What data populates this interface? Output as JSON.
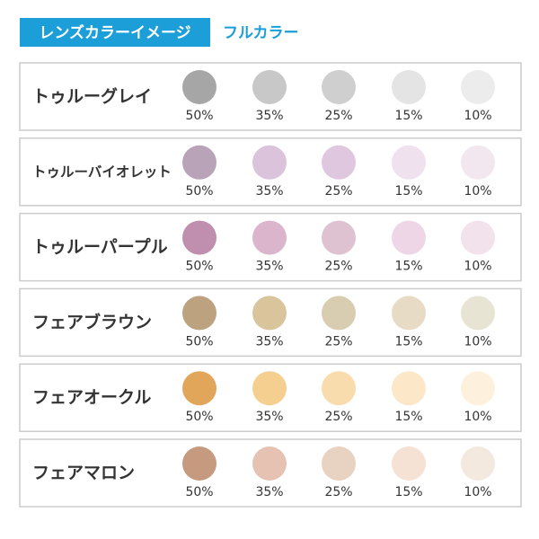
{
  "header": {
    "title": "レンズカラーイメージ",
    "subtitle": "フルカラー"
  },
  "rows": [
    {
      "name": "トゥルーグレイ",
      "swatches": [
        {
          "label": "50%",
          "color": "#a6a6a6"
        },
        {
          "label": "35%",
          "color": "#c8c8c8"
        },
        {
          "label": "25%",
          "color": "#cfcfcf"
        },
        {
          "label": "15%",
          "color": "#e4e4e4"
        },
        {
          "label": "10%",
          "color": "#ececec"
        }
      ]
    },
    {
      "name": "トゥルーバイオレット",
      "swatches": [
        {
          "label": "50%",
          "color": "#b8a3b8"
        },
        {
          "label": "35%",
          "color": "#dcc3dc"
        },
        {
          "label": "25%",
          "color": "#dfc8df"
        },
        {
          "label": "15%",
          "color": "#efe1ed"
        },
        {
          "label": "10%",
          "color": "#f3e7ef"
        }
      ]
    },
    {
      "name": "トゥルーパープル",
      "swatches": [
        {
          "label": "50%",
          "color": "#c08eaf"
        },
        {
          "label": "35%",
          "color": "#dbb5cc"
        },
        {
          "label": "25%",
          "color": "#dec2d2"
        },
        {
          "label": "15%",
          "color": "#efd6e6"
        },
        {
          "label": "10%",
          "color": "#f2e2ec"
        }
      ]
    },
    {
      "name": "フェアブラウン",
      "swatches": [
        {
          "label": "50%",
          "color": "#bca27f"
        },
        {
          "label": "35%",
          "color": "#d9c49c"
        },
        {
          "label": "25%",
          "color": "#d8cdb0"
        },
        {
          "label": "15%",
          "color": "#e8dbc6"
        },
        {
          "label": "10%",
          "color": "#e8e4d4"
        }
      ]
    },
    {
      "name": "フェアオークル",
      "swatches": [
        {
          "label": "50%",
          "color": "#e2a65a"
        },
        {
          "label": "35%",
          "color": "#f4cf8f"
        },
        {
          "label": "25%",
          "color": "#f8dcae"
        },
        {
          "label": "15%",
          "color": "#fce8c8"
        },
        {
          "label": "10%",
          "color": "#fdf0dd"
        }
      ]
    },
    {
      "name": "フェアマロン",
      "swatches": [
        {
          "label": "50%",
          "color": "#c69a7e"
        },
        {
          "label": "35%",
          "color": "#e5c2b2"
        },
        {
          "label": "25%",
          "color": "#e8d2c1"
        },
        {
          "label": "15%",
          "color": "#f5e2d4"
        },
        {
          "label": "10%",
          "color": "#f3e9df"
        }
      ]
    }
  ]
}
